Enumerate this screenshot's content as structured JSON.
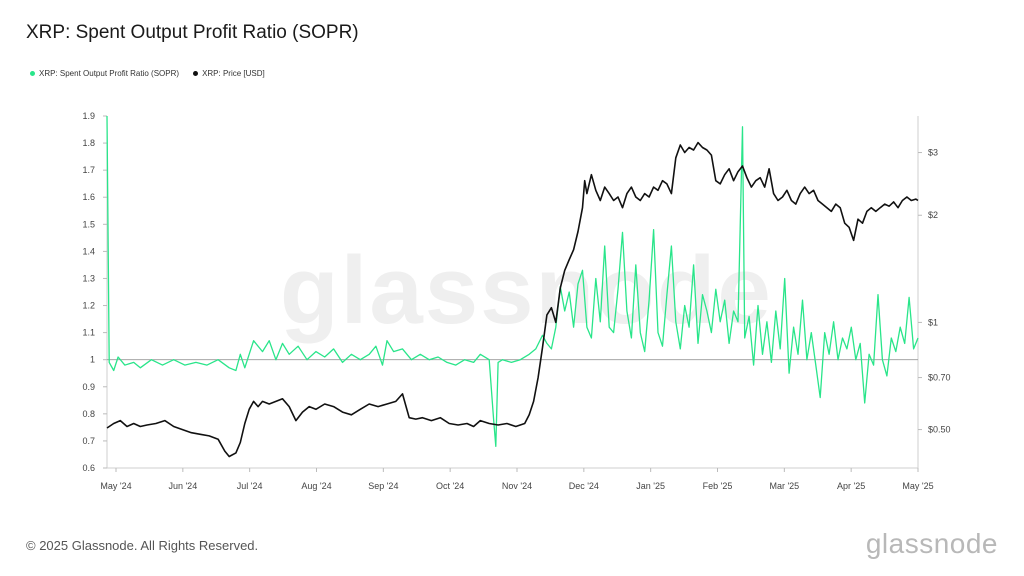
{
  "title": "XRP: Spent Output Profit Ratio (SOPR)",
  "legend": [
    {
      "label": "XRP: Spent Output Profit Ratio (SOPR)",
      "color": "#29e58a"
    },
    {
      "label": "XRP: Price [USD]",
      "color": "#111111"
    }
  ],
  "footer": "© 2025 Glassnode. All Rights Reserved.",
  "brand": "glassnode",
  "watermark": "glassnode",
  "chart_data": {
    "type": "line",
    "x_labels": [
      "May '24",
      "Jun '24",
      "Jul '24",
      "Aug '24",
      "Sep '24",
      "Oct '24",
      "Nov '24",
      "Dec '24",
      "Jan '25",
      "Feb '25",
      "Mar '25",
      "Apr '25",
      "May '25"
    ],
    "x_range_days": [
      0,
      365
    ],
    "left_axis": {
      "ticks": [
        0.6,
        0.7,
        0.8,
        0.9,
        1,
        1.1,
        1.2,
        1.3,
        1.4,
        1.5,
        1.6,
        1.7,
        1.8,
        1.9
      ],
      "ylim": [
        0.6,
        1.9
      ],
      "reference": 1
    },
    "right_axis": {
      "scale": "log",
      "ticks": [
        0.5,
        0.7,
        1,
        2,
        3
      ],
      "tick_labels": [
        "$0.50",
        "$0.70",
        "$1",
        "$2",
        "$3"
      ],
      "ylim": [
        0.39,
        3.8
      ]
    },
    "series": [
      {
        "name": "XRP: Spent Output Profit Ratio (SOPR)",
        "axis": "left",
        "color": "#29e58a",
        "points": [
          [
            0,
            1.9
          ],
          [
            1,
            0.99
          ],
          [
            3,
            0.96
          ],
          [
            5,
            1.01
          ],
          [
            8,
            0.98
          ],
          [
            12,
            0.99
          ],
          [
            15,
            0.97
          ],
          [
            20,
            1.0
          ],
          [
            25,
            0.98
          ],
          [
            30,
            1.0
          ],
          [
            35,
            0.98
          ],
          [
            40,
            0.99
          ],
          [
            45,
            0.98
          ],
          [
            50,
            1.0
          ],
          [
            55,
            0.97
          ],
          [
            58,
            0.96
          ],
          [
            60,
            1.02
          ],
          [
            62,
            0.97
          ],
          [
            66,
            1.07
          ],
          [
            70,
            1.03
          ],
          [
            73,
            1.07
          ],
          [
            76,
            1.0
          ],
          [
            79,
            1.06
          ],
          [
            82,
            1.02
          ],
          [
            86,
            1.05
          ],
          [
            90,
            1.0
          ],
          [
            94,
            1.03
          ],
          [
            98,
            1.01
          ],
          [
            102,
            1.04
          ],
          [
            106,
            0.99
          ],
          [
            110,
            1.02
          ],
          [
            114,
            1.0
          ],
          [
            118,
            1.02
          ],
          [
            121,
            1.05
          ],
          [
            124,
            0.98
          ],
          [
            126,
            1.07
          ],
          [
            129,
            1.03
          ],
          [
            133,
            1.04
          ],
          [
            137,
            1.0
          ],
          [
            141,
            1.02
          ],
          [
            145,
            1.0
          ],
          [
            149,
            1.01
          ],
          [
            153,
            0.99
          ],
          [
            157,
            0.98
          ],
          [
            161,
            1.0
          ],
          [
            165,
            0.99
          ],
          [
            168,
            1.02
          ],
          [
            172,
            1.0
          ],
          [
            174,
            0.78
          ],
          [
            175,
            0.68
          ],
          [
            176,
            0.99
          ],
          [
            178,
            1.0
          ],
          [
            182,
            0.99
          ],
          [
            186,
            1.0
          ],
          [
            190,
            1.02
          ],
          [
            193,
            1.04
          ],
          [
            196,
            1.09
          ],
          [
            198,
            1.06
          ],
          [
            200,
            1.04
          ],
          [
            202,
            1.12
          ],
          [
            204,
            1.27
          ],
          [
            206,
            1.18
          ],
          [
            208,
            1.25
          ],
          [
            210,
            1.12
          ],
          [
            212,
            1.28
          ],
          [
            214,
            1.33
          ],
          [
            216,
            1.12
          ],
          [
            218,
            1.08
          ],
          [
            220,
            1.3
          ],
          [
            222,
            1.14
          ],
          [
            224,
            1.42
          ],
          [
            226,
            1.12
          ],
          [
            228,
            1.1
          ],
          [
            230,
            1.26
          ],
          [
            232,
            1.47
          ],
          [
            234,
            1.18
          ],
          [
            236,
            1.08
          ],
          [
            238,
            1.35
          ],
          [
            240,
            1.1
          ],
          [
            242,
            1.03
          ],
          [
            244,
            1.22
          ],
          [
            246,
            1.48
          ],
          [
            248,
            1.1
          ],
          [
            250,
            1.05
          ],
          [
            252,
            1.24
          ],
          [
            254,
            1.42
          ],
          [
            256,
            1.14
          ],
          [
            258,
            1.04
          ],
          [
            260,
            1.2
          ],
          [
            262,
            1.12
          ],
          [
            264,
            1.35
          ],
          [
            266,
            1.06
          ],
          [
            268,
            1.24
          ],
          [
            270,
            1.18
          ],
          [
            272,
            1.1
          ],
          [
            274,
            1.26
          ],
          [
            276,
            1.14
          ],
          [
            278,
            1.22
          ],
          [
            280,
            1.06
          ],
          [
            282,
            1.18
          ],
          [
            284,
            1.14
          ],
          [
            286,
            1.86
          ],
          [
            287,
            1.08
          ],
          [
            289,
            1.16
          ],
          [
            291,
            0.98
          ],
          [
            293,
            1.2
          ],
          [
            295,
            1.02
          ],
          [
            297,
            1.14
          ],
          [
            299,
            0.99
          ],
          [
            301,
            1.18
          ],
          [
            303,
            1.04
          ],
          [
            305,
            1.3
          ],
          [
            307,
            0.95
          ],
          [
            309,
            1.12
          ],
          [
            311,
            1.02
          ],
          [
            313,
            1.22
          ],
          [
            315,
            1.0
          ],
          [
            317,
            1.1
          ],
          [
            319,
            0.98
          ],
          [
            321,
            0.86
          ],
          [
            323,
            1.1
          ],
          [
            325,
            1.02
          ],
          [
            327,
            1.14
          ],
          [
            329,
            1.0
          ],
          [
            331,
            1.08
          ],
          [
            333,
            1.04
          ],
          [
            335,
            1.12
          ],
          [
            337,
            1.0
          ],
          [
            339,
            1.06
          ],
          [
            341,
            0.84
          ],
          [
            343,
            1.02
          ],
          [
            345,
            0.98
          ],
          [
            347,
            1.24
          ],
          [
            349,
            1.0
          ],
          [
            351,
            0.94
          ],
          [
            353,
            1.08
          ],
          [
            355,
            1.03
          ],
          [
            357,
            1.12
          ],
          [
            359,
            1.06
          ],
          [
            361,
            1.23
          ],
          [
            363,
            1.04
          ],
          [
            365,
            1.08
          ]
        ]
      },
      {
        "name": "XRP: Price [USD]",
        "axis": "right",
        "color": "#111111",
        "points": [
          [
            0,
            0.505
          ],
          [
            3,
            0.52
          ],
          [
            6,
            0.53
          ],
          [
            9,
            0.51
          ],
          [
            12,
            0.52
          ],
          [
            15,
            0.51
          ],
          [
            18,
            0.515
          ],
          [
            22,
            0.52
          ],
          [
            26,
            0.53
          ],
          [
            30,
            0.51
          ],
          [
            34,
            0.5
          ],
          [
            38,
            0.49
          ],
          [
            42,
            0.485
          ],
          [
            46,
            0.48
          ],
          [
            50,
            0.47
          ],
          [
            53,
            0.435
          ],
          [
            55,
            0.42
          ],
          [
            58,
            0.43
          ],
          [
            60,
            0.46
          ],
          [
            62,
            0.52
          ],
          [
            64,
            0.57
          ],
          [
            66,
            0.6
          ],
          [
            68,
            0.58
          ],
          [
            70,
            0.6
          ],
          [
            73,
            0.59
          ],
          [
            76,
            0.6
          ],
          [
            79,
            0.61
          ],
          [
            82,
            0.58
          ],
          [
            85,
            0.53
          ],
          [
            88,
            0.56
          ],
          [
            91,
            0.58
          ],
          [
            94,
            0.57
          ],
          [
            98,
            0.59
          ],
          [
            102,
            0.58
          ],
          [
            106,
            0.56
          ],
          [
            110,
            0.55
          ],
          [
            114,
            0.57
          ],
          [
            118,
            0.59
          ],
          [
            122,
            0.58
          ],
          [
            126,
            0.59
          ],
          [
            130,
            0.6
          ],
          [
            133,
            0.63
          ],
          [
            136,
            0.54
          ],
          [
            139,
            0.535
          ],
          [
            142,
            0.54
          ],
          [
            146,
            0.53
          ],
          [
            150,
            0.54
          ],
          [
            154,
            0.52
          ],
          [
            158,
            0.515
          ],
          [
            162,
            0.52
          ],
          [
            165,
            0.51
          ],
          [
            168,
            0.53
          ],
          [
            172,
            0.52
          ],
          [
            176,
            0.515
          ],
          [
            180,
            0.52
          ],
          [
            184,
            0.51
          ],
          [
            188,
            0.52
          ],
          [
            190,
            0.55
          ],
          [
            192,
            0.6
          ],
          [
            194,
            0.7
          ],
          [
            196,
            0.85
          ],
          [
            198,
            1.05
          ],
          [
            200,
            1.1
          ],
          [
            202,
            1.0
          ],
          [
            204,
            1.25
          ],
          [
            206,
            1.4
          ],
          [
            208,
            1.5
          ],
          [
            210,
            1.6
          ],
          [
            212,
            1.8
          ],
          [
            214,
            2.1
          ],
          [
            215,
            2.5
          ],
          [
            216,
            2.3
          ],
          [
            218,
            2.6
          ],
          [
            220,
            2.35
          ],
          [
            222,
            2.2
          ],
          [
            224,
            2.4
          ],
          [
            226,
            2.3
          ],
          [
            228,
            2.2
          ],
          [
            230,
            2.25
          ],
          [
            232,
            2.1
          ],
          [
            234,
            2.3
          ],
          [
            236,
            2.4
          ],
          [
            238,
            2.25
          ],
          [
            240,
            2.2
          ],
          [
            242,
            2.3
          ],
          [
            244,
            2.25
          ],
          [
            246,
            2.4
          ],
          [
            248,
            2.35
          ],
          [
            250,
            2.5
          ],
          [
            252,
            2.45
          ],
          [
            254,
            2.3
          ],
          [
            256,
            2.9
          ],
          [
            258,
            3.15
          ],
          [
            260,
            3.0
          ],
          [
            262,
            3.1
          ],
          [
            264,
            3.05
          ],
          [
            266,
            3.2
          ],
          [
            268,
            3.1
          ],
          [
            270,
            3.05
          ],
          [
            272,
            2.95
          ],
          [
            274,
            2.5
          ],
          [
            276,
            2.45
          ],
          [
            278,
            2.6
          ],
          [
            280,
            2.7
          ],
          [
            282,
            2.5
          ],
          [
            284,
            2.65
          ],
          [
            286,
            2.75
          ],
          [
            288,
            2.55
          ],
          [
            290,
            2.4
          ],
          [
            292,
            2.5
          ],
          [
            294,
            2.55
          ],
          [
            296,
            2.4
          ],
          [
            298,
            2.7
          ],
          [
            300,
            2.3
          ],
          [
            302,
            2.2
          ],
          [
            304,
            2.25
          ],
          [
            306,
            2.35
          ],
          [
            308,
            2.2
          ],
          [
            310,
            2.15
          ],
          [
            312,
            2.3
          ],
          [
            314,
            2.4
          ],
          [
            316,
            2.3
          ],
          [
            318,
            2.35
          ],
          [
            320,
            2.2
          ],
          [
            322,
            2.15
          ],
          [
            324,
            2.1
          ],
          [
            326,
            2.05
          ],
          [
            328,
            2.15
          ],
          [
            330,
            2.1
          ],
          [
            332,
            1.9
          ],
          [
            334,
            1.85
          ],
          [
            336,
            1.7
          ],
          [
            338,
            1.95
          ],
          [
            340,
            1.9
          ],
          [
            342,
            2.05
          ],
          [
            344,
            2.1
          ],
          [
            346,
            2.05
          ],
          [
            348,
            2.1
          ],
          [
            350,
            2.15
          ],
          [
            352,
            2.12
          ],
          [
            354,
            2.18
          ],
          [
            356,
            2.1
          ],
          [
            358,
            2.2
          ],
          [
            360,
            2.25
          ],
          [
            362,
            2.2
          ],
          [
            364,
            2.22
          ],
          [
            365,
            2.2
          ]
        ]
      }
    ]
  }
}
